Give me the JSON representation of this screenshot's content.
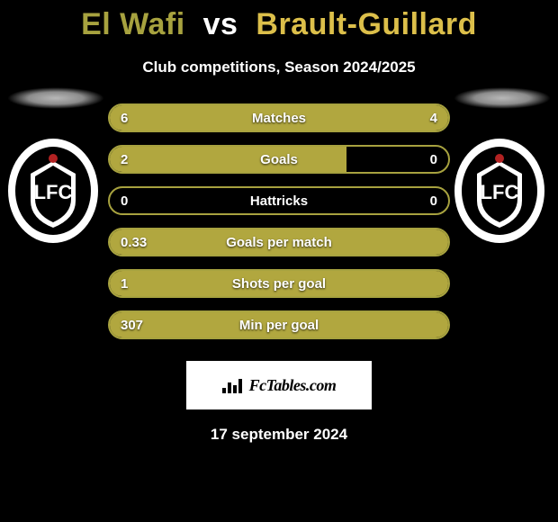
{
  "title": {
    "player1": "El Wafi",
    "vs": "vs",
    "player2": "Brault-Guillard",
    "player1_color": "#a7a23f",
    "vs_color": "#ffffff",
    "player2_color": "#dcbf4a"
  },
  "subtitle": "Club competitions, Season 2024/2025",
  "accent_color": "#a7a23f",
  "fill_color": "#b1a73f",
  "stats": [
    {
      "label": "Matches",
      "left_val": "6",
      "right_val": "4",
      "left_pct": 60,
      "right_pct": 40
    },
    {
      "label": "Goals",
      "left_val": "2",
      "right_val": "0",
      "left_pct": 70,
      "right_pct": 0
    },
    {
      "label": "Hattricks",
      "left_val": "0",
      "right_val": "0",
      "left_pct": 0,
      "right_pct": 0
    },
    {
      "label": "Goals per match",
      "left_val": "0.33",
      "right_val": "",
      "left_pct": 100,
      "right_pct": 0
    },
    {
      "label": "Shots per goal",
      "left_val": "1",
      "right_val": "",
      "left_pct": 100,
      "right_pct": 0
    },
    {
      "label": "Min per goal",
      "left_val": "307",
      "right_val": "",
      "left_pct": 100,
      "right_pct": 0
    }
  ],
  "brand": "FcTables.com",
  "date": "17 september 2024",
  "background_color": "#000000"
}
